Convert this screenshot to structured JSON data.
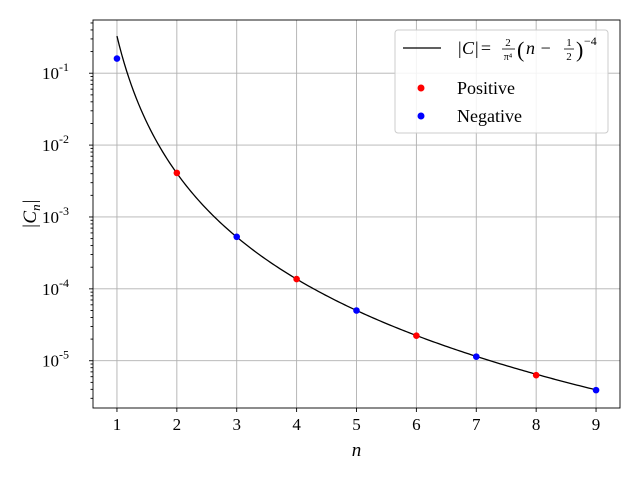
{
  "chart_data": {
    "type": "scatter",
    "x_label": "n",
    "y_label": "|Cₙ|",
    "y_scale": "log",
    "xlim": [
      0.6,
      9.4
    ],
    "ylim": [
      2.2e-06,
      0.55
    ],
    "grid": true,
    "legend_position": "top-right",
    "x_ticks": [
      "1",
      "2",
      "3",
      "4",
      "5",
      "6",
      "7",
      "8",
      "9"
    ],
    "y_ticks": [
      {
        "mantissa": "10",
        "exponent": "-1",
        "value": 0.1
      },
      {
        "mantissa": "10",
        "exponent": "-2",
        "value": 0.01
      },
      {
        "mantissa": "10",
        "exponent": "-3",
        "value": 0.001
      },
      {
        "mantissa": "10",
        "exponent": "-4",
        "value": 0.0001
      },
      {
        "mantissa": "10",
        "exponent": "-5",
        "value": 1e-05
      }
    ],
    "curve": {
      "name": "|C| = 2/π⁴ (n − 1/2)⁻⁴",
      "color": "#000000",
      "x_start": 1,
      "x_end": 9
    },
    "series": [
      {
        "name": "Positive",
        "color": "#ff0000",
        "x": [
          2,
          4,
          6,
          8
        ],
        "y": [
          0.0041,
          0.000137,
          2.23e-05,
          6.3e-06
        ]
      },
      {
        "name": "Negative",
        "color": "#0000ff",
        "x": [
          1,
          3,
          5,
          7,
          9
        ],
        "y": [
          0.16,
          0.00053,
          5e-05,
          1.14e-05,
          3.9e-06
        ]
      }
    ]
  },
  "legend": {
    "curve_label": {
      "lhs": "|C|",
      "eq": "=",
      "frac_num": "2",
      "frac_den": "π⁴",
      "paren_open": "(",
      "body": "n − ",
      "half_num": "1",
      "half_den": "2",
      "paren_close": ")",
      "exponent": "−4"
    },
    "positive_label": "Positive",
    "negative_label": "Negative"
  },
  "axes": {
    "xlabel": "n",
    "ylabel_main": "|C",
    "ylabel_sub": "n",
    "ylabel_close": "|"
  }
}
